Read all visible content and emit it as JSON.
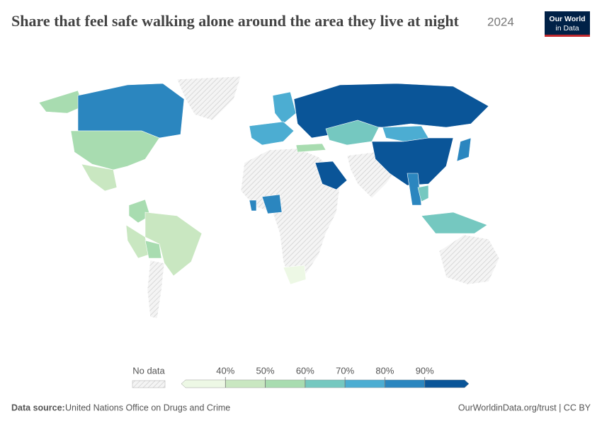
{
  "header": {
    "title": "Share that feel safe walking alone around the area they live at night",
    "year": "2024"
  },
  "logo": {
    "line1": "Our World",
    "line2": "in Data"
  },
  "legend": {
    "no_data": "No data",
    "ticks": [
      {
        "value": 40,
        "label": "40%"
      },
      {
        "value": 50,
        "label": "50%"
      },
      {
        "value": 60,
        "label": "60%"
      },
      {
        "value": 70,
        "label": "70%"
      },
      {
        "value": 80,
        "label": "80%"
      },
      {
        "value": 90,
        "label": "90%"
      }
    ],
    "colors": [
      "#edf8e5",
      "#c9e7c1",
      "#a8dcb0",
      "#75c8c0",
      "#4cadd2",
      "#2b86bf",
      "#0a5598"
    ]
  },
  "footer": {
    "source_label": "Data source:",
    "source": "United Nations Office on Drugs and Crime",
    "right": "OurWorldinData.org/trust | CC BY"
  }
}
